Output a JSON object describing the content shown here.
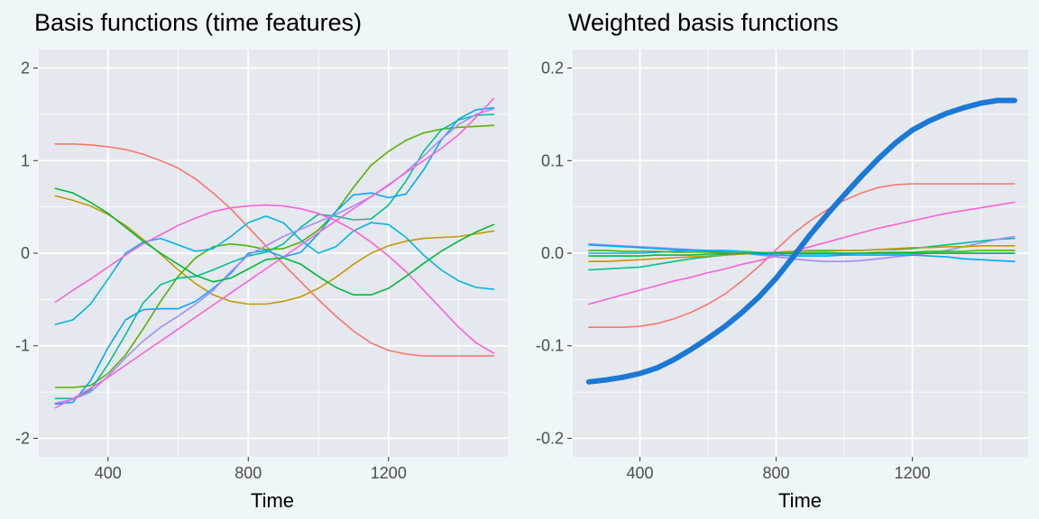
{
  "chart_data": [
    {
      "type": "line",
      "title": "Basis functions (time features)",
      "xlabel": "Time",
      "ylabel": "",
      "xlim": [
        200,
        1540
      ],
      "ylim": [
        -2.2,
        2.2
      ],
      "x_ticks": [
        400,
        800,
        1200
      ],
      "x_tick_labels": [
        "400",
        "800",
        "1200"
      ],
      "y_ticks": [
        -2,
        -1,
        0,
        1,
        2
      ],
      "y_tick_labels": [
        "-2",
        "-1",
        "0",
        "1",
        "2"
      ],
      "grid": true,
      "legend": "none",
      "x": [
        250,
        300,
        350,
        400,
        450,
        500,
        550,
        600,
        650,
        700,
        750,
        800,
        850,
        900,
        950,
        1000,
        1050,
        1100,
        1150,
        1200,
        1250,
        1300,
        1350,
        1400,
        1450,
        1500
      ],
      "series": [
        {
          "color": "#F8766D",
          "values": [
            1.18,
            1.18,
            1.17,
            1.15,
            1.12,
            1.07,
            1.0,
            0.92,
            0.8,
            0.65,
            0.48,
            0.28,
            0.08,
            -0.12,
            -0.31,
            -0.5,
            -0.68,
            -0.84,
            -0.97,
            -1.05,
            -1.09,
            -1.11,
            -1.11,
            -1.11,
            -1.11,
            -1.11
          ]
        },
        {
          "color": "#C49A00",
          "values": [
            0.62,
            0.57,
            0.51,
            0.42,
            0.3,
            0.15,
            -0.01,
            -0.18,
            -0.33,
            -0.45,
            -0.52,
            -0.55,
            -0.55,
            -0.52,
            -0.47,
            -0.38,
            -0.26,
            -0.12,
            0.0,
            0.08,
            0.13,
            0.16,
            0.17,
            0.18,
            0.21,
            0.24
          ]
        },
        {
          "color": "#53B400",
          "values": [
            -1.45,
            -1.45,
            -1.43,
            -1.3,
            -1.1,
            -0.82,
            -0.52,
            -0.25,
            -0.05,
            0.07,
            0.1,
            0.08,
            0.04,
            0.05,
            0.12,
            0.25,
            0.45,
            0.71,
            0.95,
            1.1,
            1.22,
            1.3,
            1.34,
            1.36,
            1.37,
            1.38
          ]
        },
        {
          "color": "#00C094",
          "values": [
            -1.57,
            -1.57,
            -1.48,
            -1.2,
            -0.88,
            -0.54,
            -0.34,
            -0.27,
            -0.25,
            -0.18,
            -0.1,
            -0.03,
            0.01,
            0.1,
            0.28,
            0.42,
            0.4,
            0.36,
            0.37,
            0.52,
            0.78,
            1.1,
            1.33,
            1.44,
            1.49,
            1.5
          ]
        },
        {
          "color": "#00B6EB",
          "values": [
            -0.77,
            -0.72,
            -0.55,
            -0.28,
            0.0,
            0.12,
            0.16,
            0.09,
            0.02,
            0.05,
            0.18,
            0.33,
            0.4,
            0.33,
            0.14,
            0.0,
            0.07,
            0.24,
            0.33,
            0.31,
            0.17,
            -0.02,
            -0.18,
            -0.3,
            -0.37,
            -0.39
          ]
        },
        {
          "color": "#00A9FF",
          "values": [
            -1.63,
            -1.61,
            -1.38,
            -1.02,
            -0.72,
            -0.61,
            -0.6,
            -0.6,
            -0.52,
            -0.38,
            -0.22,
            0.0,
            0.03,
            -0.04,
            0.01,
            0.21,
            0.45,
            0.63,
            0.65,
            0.6,
            0.64,
            0.9,
            1.22,
            1.45,
            1.55,
            1.57
          ]
        },
        {
          "color": "#A58AFF",
          "values": [
            -1.62,
            -1.58,
            -1.5,
            -1.33,
            -1.13,
            -0.95,
            -0.8,
            -0.68,
            -0.55,
            -0.4,
            -0.2,
            -0.02,
            0.08,
            0.18,
            0.26,
            0.34,
            0.42,
            0.51,
            0.61,
            0.73,
            0.88,
            1.05,
            1.23,
            1.39,
            1.5,
            1.56
          ]
        },
        {
          "color": "#FB61D7",
          "values": [
            -0.53,
            -0.4,
            -0.28,
            -0.15,
            -0.02,
            0.1,
            0.2,
            0.3,
            0.38,
            0.45,
            0.49,
            0.51,
            0.52,
            0.51,
            0.48,
            0.43,
            0.35,
            0.25,
            0.12,
            -0.03,
            -0.2,
            -0.4,
            -0.6,
            -0.8,
            -0.97,
            -1.08
          ]
        },
        {
          "color": "#F564E3",
          "values": [
            -1.67,
            -1.57,
            -1.46,
            -1.34,
            -1.21,
            -1.08,
            -0.95,
            -0.82,
            -0.69,
            -0.56,
            -0.43,
            -0.3,
            -0.17,
            -0.04,
            0.09,
            0.22,
            0.35,
            0.48,
            0.61,
            0.74,
            0.87,
            1.0,
            1.13,
            1.28,
            1.47,
            1.67
          ]
        },
        {
          "color": "#00BA38",
          "values": [
            0.7,
            0.65,
            0.55,
            0.43,
            0.28,
            0.13,
            0.0,
            -0.12,
            -0.24,
            -0.31,
            -0.27,
            -0.17,
            -0.07,
            -0.05,
            -0.12,
            -0.25,
            -0.37,
            -0.45,
            -0.45,
            -0.38,
            -0.25,
            -0.11,
            0.02,
            0.13,
            0.23,
            0.31
          ]
        }
      ]
    },
    {
      "type": "line",
      "title": "Weighted basis functions",
      "xlabel": "Time",
      "ylabel": "",
      "xlim": [
        200,
        1540
      ],
      "ylim": [
        -0.22,
        0.22
      ],
      "x_ticks": [
        400,
        800,
        1200
      ],
      "x_tick_labels": [
        "400",
        "800",
        "1200"
      ],
      "y_ticks": [
        -0.2,
        -0.1,
        0.0,
        0.1,
        0.2
      ],
      "y_tick_labels": [
        "-0.2",
        "-0.1",
        "0.0",
        "0.1",
        "0.2"
      ],
      "grid": true,
      "legend": "none",
      "x": [
        250,
        300,
        350,
        400,
        450,
        500,
        550,
        600,
        650,
        700,
        750,
        800,
        850,
        900,
        950,
        1000,
        1050,
        1100,
        1150,
        1200,
        1250,
        1300,
        1350,
        1400,
        1450,
        1500
      ],
      "series": [
        {
          "color": "#F8766D",
          "values": [
            -0.08,
            -0.08,
            -0.08,
            -0.079,
            -0.076,
            -0.071,
            -0.064,
            -0.055,
            -0.044,
            -0.03,
            -0.014,
            0.004,
            0.021,
            0.035,
            0.047,
            0.057,
            0.065,
            0.071,
            0.074,
            0.075,
            0.075,
            0.075,
            0.075,
            0.075,
            0.075,
            0.075
          ]
        },
        {
          "color": "#FB61D7",
          "values": [
            -0.055,
            -0.05,
            -0.045,
            -0.04,
            -0.035,
            -0.03,
            -0.026,
            -0.021,
            -0.017,
            -0.012,
            -0.008,
            -0.003,
            0.002,
            0.007,
            0.012,
            0.017,
            0.022,
            0.027,
            0.031,
            0.035,
            0.039,
            0.043,
            0.046,
            0.049,
            0.052,
            0.055
          ]
        },
        {
          "color": "#00C094",
          "values": [
            -0.018,
            -0.017,
            -0.016,
            -0.015,
            -0.012,
            -0.009,
            -0.006,
            -0.004,
            -0.002,
            -0.001,
            0.0,
            0.001,
            0.002,
            0.003,
            0.003,
            0.003,
            0.003,
            0.004,
            0.004,
            0.005,
            0.007,
            0.009,
            0.011,
            0.013,
            0.015,
            0.016
          ]
        },
        {
          "color": "#A58AFF",
          "values": [
            0.01,
            0.009,
            0.008,
            0.007,
            0.006,
            0.005,
            0.004,
            0.003,
            0.002,
            0.0,
            -0.002,
            -0.004,
            -0.006,
            -0.008,
            -0.009,
            -0.009,
            -0.008,
            -0.006,
            -0.004,
            -0.002,
            0.0,
            0.003,
            0.007,
            0.011,
            0.015,
            0.018
          ]
        },
        {
          "color": "#C49A00",
          "values": [
            -0.009,
            -0.009,
            -0.008,
            -0.007,
            -0.006,
            -0.005,
            -0.004,
            -0.003,
            -0.002,
            -0.001,
            0.0,
            0.001,
            0.002,
            0.002,
            0.002,
            0.003,
            0.003,
            0.004,
            0.005,
            0.006,
            0.006,
            0.007,
            0.007,
            0.008,
            0.008,
            0.008
          ]
        },
        {
          "color": "#00B6EB",
          "values": [
            0.0,
            0.0,
            0.0,
            0.0,
            0.001,
            0.002,
            0.003,
            0.003,
            0.003,
            0.002,
            0.001,
            0.0,
            -0.001,
            -0.001,
            -0.001,
            -0.001,
            0.0,
            0.0,
            0.0,
            0.0,
            0.0,
            0.0,
            0.0,
            0.0,
            0.0,
            0.0
          ]
        },
        {
          "color": "#00A9FF",
          "values": [
            0.009,
            0.008,
            0.007,
            0.006,
            0.005,
            0.004,
            0.003,
            0.002,
            0.001,
            0.0,
            -0.001,
            -0.002,
            -0.003,
            -0.003,
            -0.003,
            -0.002,
            -0.002,
            -0.002,
            -0.002,
            -0.002,
            -0.003,
            -0.004,
            -0.006,
            -0.007,
            -0.008,
            -0.009
          ]
        },
        {
          "color": "#53B400",
          "values": [
            0.003,
            0.003,
            0.002,
            0.002,
            0.002,
            0.001,
            0.001,
            0.001,
            0.0,
            0.0,
            0.0,
            0.0,
            0.0,
            0.0,
            0.0,
            0.0,
            0.0,
            0.001,
            0.001,
            0.001,
            0.002,
            0.002,
            0.002,
            0.003,
            0.003,
            0.003
          ]
        },
        {
          "color": "#00BA38",
          "values": [
            -0.003,
            -0.003,
            -0.003,
            -0.003,
            -0.002,
            -0.002,
            -0.002,
            -0.001,
            -0.001,
            0.0,
            0.0,
            0.0,
            0.0,
            0.0,
            0.0,
            0.0,
            0.0,
            0.0,
            0.0,
            0.0,
            0.0,
            0.0,
            0.0,
            0.0,
            0.0,
            0.0
          ]
        },
        {
          "color": "#1a78d6",
          "values": [
            -0.139,
            -0.137,
            -0.134,
            -0.13,
            -0.124,
            -0.115,
            -0.104,
            -0.092,
            -0.079,
            -0.064,
            -0.047,
            -0.027,
            -0.004,
            0.02,
            0.042,
            0.063,
            0.083,
            0.102,
            0.119,
            0.133,
            0.143,
            0.151,
            0.157,
            0.162,
            0.165,
            0.165
          ]
        }
      ]
    }
  ]
}
